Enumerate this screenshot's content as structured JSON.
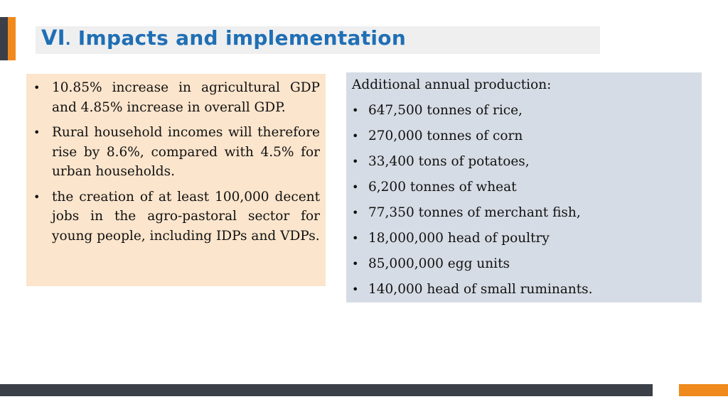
{
  "header": {
    "title_numeral": "VI",
    "title_dot": ".",
    "title_text": " Impacts and implementation"
  },
  "left_panel": {
    "items": [
      "10.85% increase in agricultural GDP and 4.85% increase in overall GDP.",
      "Rural household incomes will therefore rise by 8.6%, compared with 4.5% for urban households.",
      "the creation of at least 100,000 decent jobs in the agro-pastoral sector for young people, including IDPs and VDPs."
    ]
  },
  "right_panel": {
    "heading": "Additional annual production:",
    "items": [
      "647,500 tonnes of rice,",
      "270,000 tonnes of corn",
      "33,400 tons of potatoes,",
      "6,200 tonnes of wheat",
      "77,350 tonnes of merchant fish,",
      "18,000,000 head of poultry",
      "85,000,000 egg units",
      "140,000 head of small ruminants."
    ]
  },
  "colors": {
    "title_blue": "#1f6fb5",
    "accent_orange": "#f08a1c",
    "dark_gray": "#3b3f47",
    "left_panel_bg": "#fbe5cc",
    "right_panel_bg": "#d6dce5"
  }
}
